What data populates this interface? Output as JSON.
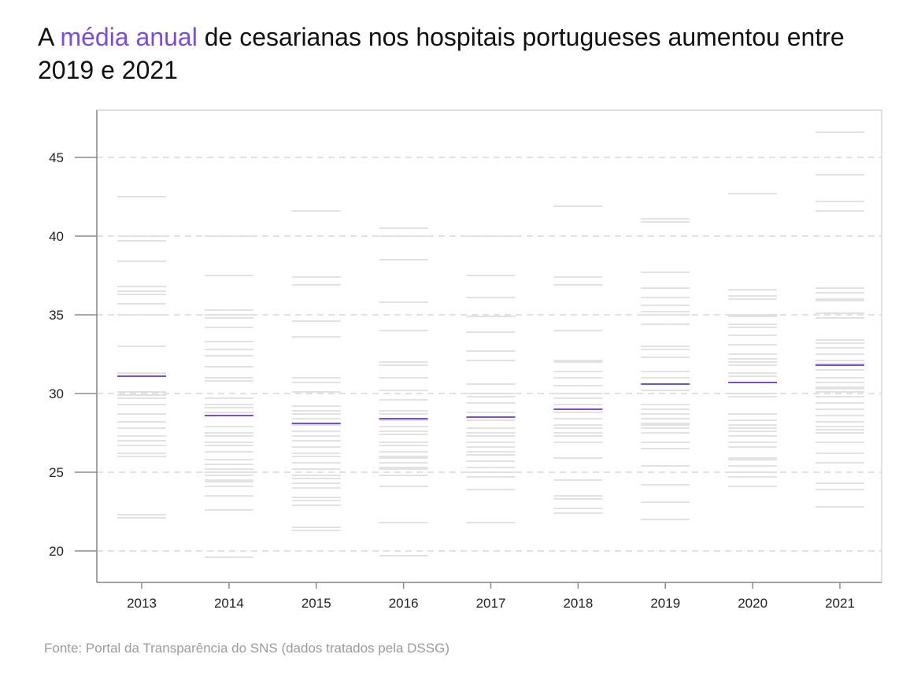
{
  "title": {
    "part1": "A ",
    "highlight": "média anual",
    "part2": " de cesarianas nos hospitais portugueses aumentou entre 2019 e 2021"
  },
  "source": "Fonte: Portal da Transparência do SNS (dados tratados pela DSSG)",
  "colors": {
    "mean": "#7b4ae2",
    "hospital": "#d9d9d9",
    "grid": "#cfcfcf",
    "axis": "#8a8a8a"
  },
  "chart_data": {
    "type": "scatter",
    "title": "A média anual de cesarianas nos hospitais portugueses aumentou entre 2019 e 2021",
    "xlabel": "",
    "ylabel": "",
    "ylim": [
      18,
      48
    ],
    "yticks": [
      20,
      25,
      30,
      35,
      40,
      45
    ],
    "grid": true,
    "categories": [
      "2013",
      "2014",
      "2015",
      "2016",
      "2017",
      "2018",
      "2019",
      "2020",
      "2021"
    ],
    "series": [
      {
        "values_by_year": [
          [
            42.5,
            40.0,
            39.7,
            38.4,
            36.8,
            36.5,
            36.3,
            35.7,
            35.0,
            33.0,
            31.3,
            30.1,
            29.9,
            29.7,
            29.3,
            28.7,
            28.2,
            27.8,
            27.3,
            27.0,
            26.7,
            26.2,
            26.0,
            22.3,
            22.1
          ],
          [
            40.0,
            37.5,
            35.3,
            35.0,
            34.8,
            34.2,
            33.3,
            32.8,
            32.4,
            31.7,
            31.0,
            30.8,
            29.7,
            29.3,
            29.1,
            28.8,
            27.9,
            27.5,
            27.3,
            26.9,
            26.7,
            26.3,
            25.8,
            25.5,
            25.2,
            25.0,
            24.8,
            24.5,
            24.4,
            24.1,
            23.5,
            22.6,
            19.6
          ],
          [
            41.6,
            37.4,
            36.9,
            34.6,
            33.6,
            31.0,
            30.7,
            30.1,
            29.2,
            28.9,
            28.7,
            28.4,
            28.0,
            27.6,
            27.3,
            27.0,
            26.6,
            26.2,
            26.0,
            25.6,
            25.2,
            24.8,
            24.6,
            24.3,
            24.0,
            23.4,
            23.2,
            22.9,
            21.5,
            21.3
          ],
          [
            40.5,
            40.0,
            38.5,
            35.8,
            34.0,
            32.0,
            31.8,
            31.0,
            30.2,
            29.6,
            28.9,
            28.7,
            28.3,
            27.9,
            27.6,
            27.4,
            26.9,
            26.7,
            26.3,
            26.0,
            25.9,
            25.6,
            25.3,
            25.2,
            24.8,
            24.1,
            21.8,
            19.7
          ],
          [
            40.0,
            37.5,
            36.1,
            34.9,
            33.9,
            32.7,
            32.1,
            30.6,
            30.0,
            29.8,
            29.4,
            28.8,
            28.3,
            27.8,
            27.5,
            27.3,
            26.9,
            26.6,
            26.3,
            26.1,
            25.7,
            25.3,
            25.0,
            24.7,
            23.9,
            21.8
          ],
          [
            41.9,
            37.4,
            36.9,
            34.0,
            32.1,
            32.0,
            31.4,
            31.0,
            30.5,
            30.0,
            29.7,
            29.3,
            28.8,
            28.4,
            28.0,
            27.8,
            27.5,
            27.3,
            26.9,
            25.9,
            24.5,
            23.5,
            23.3,
            22.7,
            22.4
          ],
          [
            41.1,
            40.9,
            37.7,
            36.7,
            36.1,
            35.6,
            35.2,
            35.0,
            34.4,
            33.0,
            32.8,
            32.3,
            31.4,
            31.0,
            30.2,
            29.3,
            29.0,
            28.7,
            28.4,
            28.1,
            28.0,
            27.8,
            27.5,
            26.9,
            26.5,
            25.4,
            24.2,
            23.1,
            22.0
          ],
          [
            42.7,
            36.6,
            36.2,
            36.0,
            35.0,
            34.9,
            34.4,
            34.2,
            33.7,
            33.1,
            32.5,
            32.2,
            32.0,
            31.8,
            31.3,
            31.1,
            30.7,
            30.0,
            29.8,
            28.7,
            28.3,
            28.0,
            27.8,
            27.6,
            27.3,
            26.9,
            26.6,
            25.9,
            25.8,
            25.4,
            25.0,
            24.7,
            24.1
          ],
          [
            46.6,
            43.9,
            42.2,
            41.6,
            36.7,
            36.4,
            36.0,
            35.9,
            35.1,
            34.8,
            33.4,
            33.2,
            32.9,
            32.5,
            32.1,
            31.9,
            31.5,
            31.0,
            30.7,
            30.4,
            30.3,
            30.1,
            29.8,
            29.4,
            29.0,
            28.6,
            28.2,
            27.9,
            27.7,
            27.5,
            26.9,
            26.2,
            25.6,
            24.3,
            23.9,
            22.8
          ]
        ]
      }
    ],
    "means": [
      31.1,
      28.6,
      28.1,
      28.4,
      28.5,
      29.0,
      30.6,
      30.7,
      31.8
    ]
  }
}
